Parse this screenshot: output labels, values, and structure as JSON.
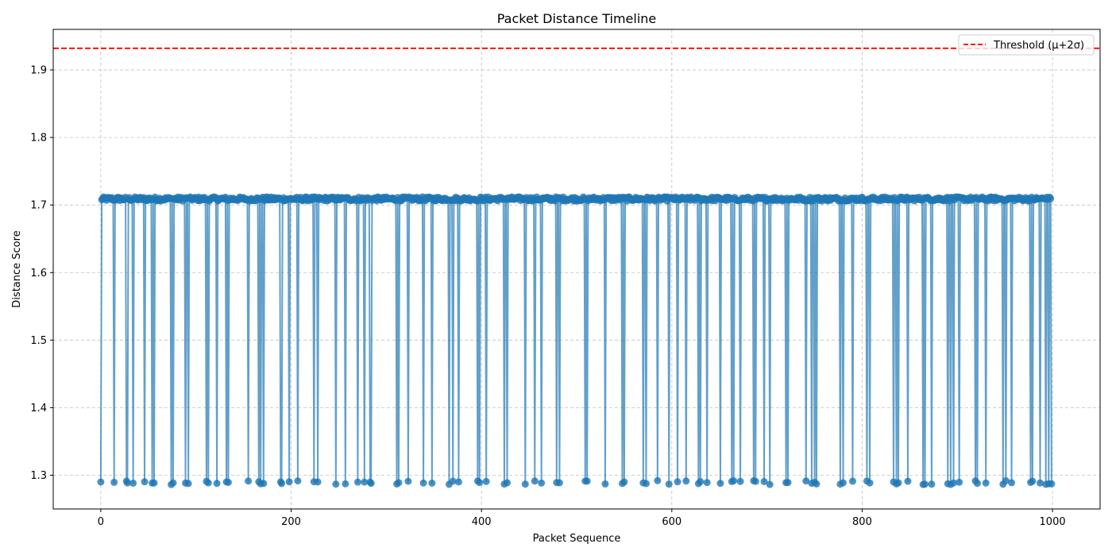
{
  "chart_data": {
    "type": "line",
    "title": "Packet Distance Timeline",
    "xlabel": "Packet Sequence",
    "ylabel": "Distance Score",
    "xlim": [
      -50,
      1050
    ],
    "ylim": [
      1.25,
      1.96
    ],
    "xticks": [
      0,
      200,
      400,
      600,
      800,
      1000
    ],
    "yticks": [
      1.3,
      1.4,
      1.5,
      1.6,
      1.7,
      1.8,
      1.9
    ],
    "grid": true,
    "legend_position": "top-right",
    "series": [
      {
        "marker": "circle",
        "color": "#1f77b4",
        "normal_value": 1.709,
        "drop_value": 1.289,
        "n_points": 1000,
        "x_start": 0,
        "x_end": 999,
        "drop_indices": [
          0,
          14,
          27,
          28,
          34,
          46,
          54,
          56,
          74,
          76,
          89,
          92,
          111,
          113,
          122,
          132,
          134,
          155,
          166,
          168,
          171,
          189,
          190,
          198,
          207,
          224,
          228,
          247,
          257,
          270,
          277,
          283,
          284,
          311,
          313,
          323,
          339,
          348,
          366,
          370,
          376,
          396,
          398,
          405,
          424,
          427,
          446,
          456,
          463,
          479,
          482,
          509,
          511,
          530,
          548,
          550,
          570,
          573,
          585,
          597,
          606,
          615,
          628,
          630,
          637,
          651,
          663,
          665,
          672,
          686,
          688,
          697,
          703,
          720,
          722,
          741,
          747,
          750,
          752,
          777,
          780,
          790,
          805,
          808,
          833,
          836,
          838,
          848,
          864,
          866,
          873,
          890,
          893,
          896,
          902,
          919,
          921,
          930,
          948,
          951,
          957,
          977,
          979,
          987,
          993,
          996,
          999
        ]
      },
      {
        "name": "Threshold (μ+2σ)",
        "style": "dashed",
        "color": "#ff0000",
        "y": 1.932
      }
    ],
    "legend": [
      "Threshold (μ+2σ)"
    ]
  }
}
